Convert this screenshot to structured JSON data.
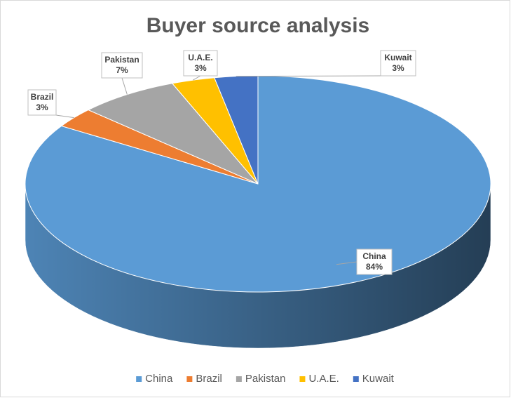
{
  "chart_data": {
    "type": "pie",
    "title": "Buyer source analysis",
    "categories": [
      "China",
      "Brazil",
      "Pakistan",
      "U.A.E.",
      "Kuwait"
    ],
    "values": [
      84,
      3,
      7,
      3,
      3
    ],
    "value_labels": [
      "84%",
      "3%",
      "7%",
      "3%",
      "3%"
    ],
    "colors": [
      "#5b9bd5",
      "#ed7d31",
      "#a5a5a5",
      "#ffc000",
      "#4472c4"
    ],
    "legend": "bottom"
  }
}
